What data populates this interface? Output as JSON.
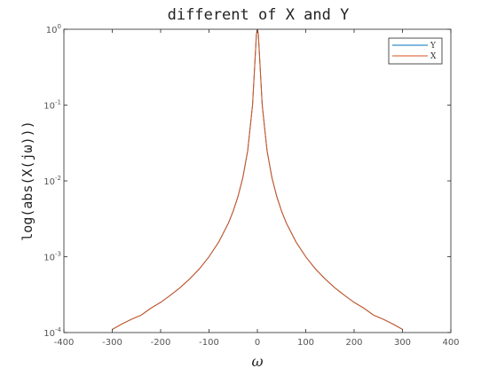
{
  "chart_data": {
    "type": "line",
    "title": "different of X and Y",
    "xlabel": "ω",
    "ylabel": "log(abs(X(jω)))",
    "xlim": [
      -400,
      400
    ],
    "ylim": [
      0.0001,
      1
    ],
    "yscale": "log",
    "grid": false,
    "legend_position": "top-right",
    "x_ticks": [
      -400,
      -300,
      -200,
      -100,
      0,
      100,
      200,
      300,
      400
    ],
    "x_tick_labels": [
      "-400",
      "-300",
      "-200",
      "-100",
      "0",
      "100",
      "200",
      "300",
      "400"
    ],
    "y_ticks": [
      0.0001,
      0.001,
      0.01,
      0.1,
      1
    ],
    "y_tick_labels": [
      {
        "base": "10",
        "exp": "-4"
      },
      {
        "base": "10",
        "exp": "-3"
      },
      {
        "base": "10",
        "exp": "-2"
      },
      {
        "base": "10",
        "exp": "-1"
      },
      {
        "base": "10",
        "exp": "0"
      }
    ],
    "x": [
      -300,
      -280,
      -260,
      -240,
      -220,
      -200,
      -180,
      -160,
      -140,
      -120,
      -100,
      -80,
      -60,
      -50,
      -40,
      -30,
      -20,
      -10,
      -5,
      -2,
      0,
      2,
      5,
      10,
      20,
      30,
      40,
      50,
      60,
      80,
      100,
      120,
      140,
      160,
      180,
      200,
      220,
      240,
      260,
      280,
      300
    ],
    "series": [
      {
        "name": "Y",
        "color": "#0072BD",
        "values": [
          0.00011,
          0.00013,
          0.00015,
          0.00017,
          0.00021,
          0.00025,
          0.00031,
          0.00039,
          0.00051,
          0.00069,
          0.001,
          0.00156,
          0.00277,
          0.004,
          0.00625,
          0.0111,
          0.025,
          0.1,
          0.38,
          0.86,
          1.0,
          0.86,
          0.38,
          0.1,
          0.025,
          0.0111,
          0.00625,
          0.004,
          0.00277,
          0.00156,
          0.001,
          0.00069,
          0.00051,
          0.00039,
          0.00031,
          0.00025,
          0.00021,
          0.00017,
          0.00015,
          0.00013,
          0.00011
        ]
      },
      {
        "name": "X",
        "color": "#D95319",
        "values": [
          0.00011,
          0.00013,
          0.00015,
          0.00017,
          0.00021,
          0.00025,
          0.00031,
          0.00039,
          0.00051,
          0.00069,
          0.001,
          0.00156,
          0.00277,
          0.004,
          0.00625,
          0.0111,
          0.025,
          0.1,
          0.38,
          0.86,
          1.0,
          0.86,
          0.38,
          0.1,
          0.025,
          0.0111,
          0.00625,
          0.004,
          0.00277,
          0.00156,
          0.001,
          0.00069,
          0.00051,
          0.00039,
          0.00031,
          0.00025,
          0.00021,
          0.00017,
          0.00015,
          0.00013,
          0.00011
        ]
      }
    ]
  }
}
